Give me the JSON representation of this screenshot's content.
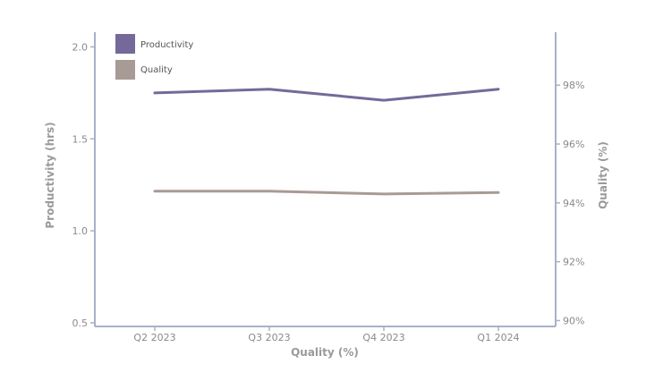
{
  "chart_data": {
    "type": "line",
    "categories": [
      "Q2 2023",
      "Q3 2023",
      "Q4 2023",
      "Q1 2024"
    ],
    "series": [
      {
        "name": "Productivity",
        "axis": "left",
        "values": [
          1.75,
          1.77,
          1.71,
          1.77
        ],
        "color": "#75699a"
      },
      {
        "name": "Quality",
        "axis": "right",
        "values": [
          94.4,
          94.4,
          94.3,
          94.35
        ],
        "color": "#a89a95"
      }
    ],
    "xlabel": "Quality (%)",
    "ylabel_left": "Productivity (hrs)",
    "ylabel_right": "Quality (%)",
    "y_left": {
      "lim": [
        0.48,
        2.08
      ],
      "ticks": [
        0.5,
        1.0,
        1.5,
        2.0
      ],
      "tick_labels": [
        "0.5",
        "1.0",
        "1.5",
        "2.0"
      ]
    },
    "y_right": {
      "lim": [
        89.8,
        99.8
      ],
      "ticks": [
        90,
        92,
        94,
        96,
        98
      ],
      "tick_labels": [
        "90%",
        "92%",
        "94%",
        "96%",
        "98%"
      ]
    },
    "legend": "top-left",
    "grid": false,
    "axis_color": "#a9b0c8"
  }
}
